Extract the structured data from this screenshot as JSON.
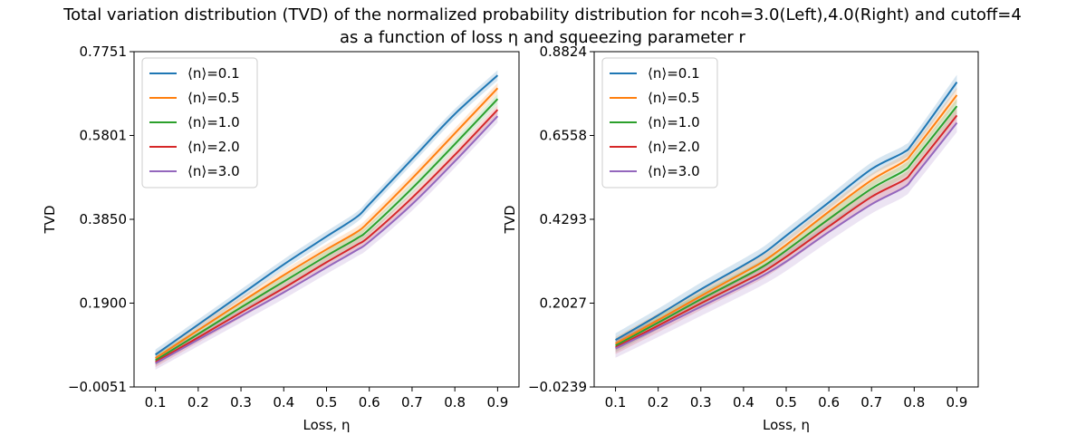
{
  "figure": {
    "title_line1": "Total variation distribution (TVD) of the normalized probability distribution for ncoh=3.0(Left),4.0(Right) and cutoff=4",
    "title_line2": "as a function of loss η and squeezing parameter r"
  },
  "chart_data": [
    {
      "type": "line",
      "panel": "left",
      "xlabel": "Loss, η",
      "ylabel": "TVD",
      "xlim": [
        0.05,
        0.95
      ],
      "ylim": [
        -0.0051,
        0.7751
      ],
      "xticks": [
        0.1,
        0.2,
        0.3,
        0.4,
        0.5,
        0.6,
        0.7,
        0.8,
        0.9
      ],
      "xtick_labels": [
        "0.1",
        "0.2",
        "0.3",
        "0.4",
        "0.5",
        "0.6",
        "0.7",
        "0.8",
        "0.9"
      ],
      "yticks": [
        -0.0051,
        0.19,
        0.385,
        0.5801,
        0.7751
      ],
      "ytick_labels": [
        "−0.0051",
        "0.1900",
        "0.3850",
        "0.5801",
        "0.7751"
      ],
      "legend_position": "upper-left",
      "grid": false,
      "x": [
        0.1,
        0.2,
        0.3,
        0.4,
        0.5,
        0.57,
        0.6,
        0.7,
        0.8,
        0.9
      ],
      "series": [
        {
          "name": "⟨n⟩=0.1",
          "color": "#1f77b4",
          "values": [
            0.07,
            0.14,
            0.21,
            0.28,
            0.345,
            0.39,
            0.42,
            0.525,
            0.63,
            0.72
          ],
          "band": [
            0.012,
            0.012,
            0.012,
            0.012,
            0.012,
            0.012,
            0.012,
            0.012,
            0.012,
            0.012
          ]
        },
        {
          "name": "⟨n⟩=0.5",
          "color": "#ff7f0e",
          "values": [
            0.062,
            0.127,
            0.192,
            0.255,
            0.315,
            0.355,
            0.38,
            0.48,
            0.585,
            0.69
          ],
          "band": [
            0.012,
            0.012,
            0.012,
            0.012,
            0.012,
            0.012,
            0.012,
            0.012,
            0.012,
            0.012
          ]
        },
        {
          "name": "⟨n⟩=1.0",
          "color": "#2ca02c",
          "values": [
            0.057,
            0.118,
            0.18,
            0.24,
            0.3,
            0.34,
            0.362,
            0.457,
            0.56,
            0.665
          ],
          "band": [
            0.012,
            0.012,
            0.012,
            0.012,
            0.012,
            0.012,
            0.012,
            0.012,
            0.012,
            0.012
          ]
        },
        {
          "name": "⟨n⟩=2.0",
          "color": "#d62728",
          "values": [
            0.053,
            0.11,
            0.168,
            0.225,
            0.285,
            0.325,
            0.345,
            0.435,
            0.535,
            0.64
          ],
          "band": [
            0.012,
            0.012,
            0.012,
            0.012,
            0.012,
            0.012,
            0.012,
            0.012,
            0.012,
            0.012
          ]
        },
        {
          "name": "⟨n⟩=3.0",
          "color": "#9467bd",
          "values": [
            0.05,
            0.105,
            0.16,
            0.215,
            0.273,
            0.313,
            0.333,
            0.42,
            0.52,
            0.625
          ],
          "band": [
            0.015,
            0.015,
            0.015,
            0.015,
            0.015,
            0.015,
            0.015,
            0.015,
            0.015,
            0.015
          ]
        }
      ]
    },
    {
      "type": "line",
      "panel": "right",
      "xlabel": "Loss, η",
      "ylabel": "TVD",
      "xlim": [
        0.05,
        0.95
      ],
      "ylim": [
        -0.0239,
        0.8824
      ],
      "xticks": [
        0.1,
        0.2,
        0.3,
        0.4,
        0.5,
        0.6,
        0.7,
        0.8,
        0.9
      ],
      "xtick_labels": [
        "0.1",
        "0.2",
        "0.3",
        "0.4",
        "0.5",
        "0.6",
        "0.7",
        "0.8",
        "0.9"
      ],
      "yticks": [
        -0.0239,
        0.2027,
        0.4293,
        0.6558,
        0.8824
      ],
      "ytick_labels": [
        "−0.0239",
        "0.2027",
        "0.4293",
        "0.6558",
        "0.8824"
      ],
      "legend_position": "upper-left",
      "grid": false,
      "x": [
        0.1,
        0.2,
        0.3,
        0.4,
        0.45,
        0.5,
        0.6,
        0.7,
        0.775,
        0.8,
        0.9
      ],
      "series": [
        {
          "name": "⟨n⟩=0.1",
          "color": "#1f77b4",
          "values": [
            0.103,
            0.17,
            0.24,
            0.305,
            0.34,
            0.385,
            0.475,
            0.565,
            0.61,
            0.64,
            0.8
          ],
          "band": [
            0.018,
            0.018,
            0.018,
            0.018,
            0.018,
            0.018,
            0.018,
            0.018,
            0.018,
            0.018,
            0.02
          ]
        },
        {
          "name": "⟨n⟩=0.5",
          "color": "#ff7f0e",
          "values": [
            0.093,
            0.157,
            0.222,
            0.285,
            0.318,
            0.36,
            0.45,
            0.535,
            0.585,
            0.615,
            0.765
          ],
          "band": [
            0.018,
            0.018,
            0.018,
            0.018,
            0.018,
            0.018,
            0.018,
            0.018,
            0.018,
            0.018,
            0.02
          ]
        },
        {
          "name": "⟨n⟩=1.0",
          "color": "#2ca02c",
          "values": [
            0.088,
            0.15,
            0.213,
            0.273,
            0.305,
            0.345,
            0.43,
            0.512,
            0.56,
            0.59,
            0.735
          ],
          "band": [
            0.018,
            0.018,
            0.018,
            0.018,
            0.018,
            0.018,
            0.018,
            0.018,
            0.018,
            0.018,
            0.02
          ]
        },
        {
          "name": "⟨n⟩=2.0",
          "color": "#d62728",
          "values": [
            0.083,
            0.142,
            0.202,
            0.26,
            0.29,
            0.328,
            0.41,
            0.49,
            0.535,
            0.565,
            0.71
          ],
          "band": [
            0.018,
            0.018,
            0.018,
            0.018,
            0.018,
            0.018,
            0.018,
            0.018,
            0.018,
            0.018,
            0.02
          ]
        },
        {
          "name": "⟨n⟩=3.0",
          "color": "#9467bd",
          "values": [
            0.08,
            0.136,
            0.193,
            0.25,
            0.28,
            0.315,
            0.395,
            0.47,
            0.515,
            0.545,
            0.69
          ],
          "band": [
            0.025,
            0.025,
            0.025,
            0.025,
            0.025,
            0.025,
            0.025,
            0.025,
            0.025,
            0.025,
            0.025
          ]
        }
      ]
    }
  ]
}
